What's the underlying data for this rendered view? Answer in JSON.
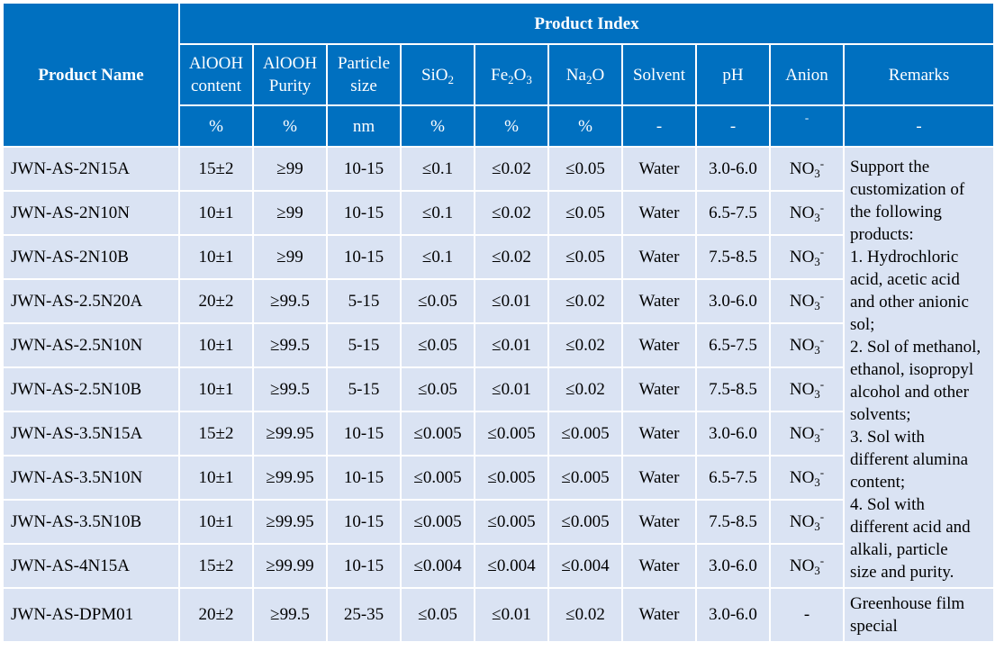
{
  "header": {
    "product_name": "Product Name",
    "product_index": "Product Index",
    "columns": [
      {
        "parts": [
          {
            "t": "AlOOH content"
          }
        ]
      },
      {
        "parts": [
          {
            "t": "AlOOH Purity"
          }
        ]
      },
      {
        "parts": [
          {
            "t": "Particle size"
          }
        ]
      },
      {
        "parts": [
          {
            "t": "SiO"
          },
          {
            "t": "2",
            "s": "sub"
          }
        ]
      },
      {
        "parts": [
          {
            "t": "Fe"
          },
          {
            "t": "2",
            "s": "sub"
          },
          {
            "t": "O"
          },
          {
            "t": "3",
            "s": "sub"
          }
        ]
      },
      {
        "parts": [
          {
            "t": "Na"
          },
          {
            "t": "2",
            "s": "sub"
          },
          {
            "t": "O"
          }
        ]
      },
      {
        "parts": [
          {
            "t": "Solvent"
          }
        ]
      },
      {
        "parts": [
          {
            "t": "pH"
          }
        ]
      },
      {
        "parts": [
          {
            "t": "Anion"
          }
        ]
      },
      {
        "parts": [
          {
            "t": "Remarks"
          }
        ]
      }
    ],
    "units": [
      "%",
      "%",
      "nm",
      "%",
      "%",
      "%",
      "-",
      "-",
      "-",
      "-"
    ]
  },
  "rows": [
    {
      "name": "JWN-AS-2N15A",
      "content": "15±2",
      "purity": "≥99",
      "size": "10-15",
      "sio2": "≤0.1",
      "fe2o3": "≤0.02",
      "na2o": "≤0.05",
      "solvent": "Water",
      "ph": "3.0-6.0",
      "anion": "NO3-"
    },
    {
      "name": "JWN-AS-2N10N",
      "content": "10±1",
      "purity": "≥99",
      "size": "10-15",
      "sio2": "≤0.1",
      "fe2o3": "≤0.02",
      "na2o": "≤0.05",
      "solvent": "Water",
      "ph": "6.5-7.5",
      "anion": "NO3-"
    },
    {
      "name": "JWN-AS-2N10B",
      "content": "10±1",
      "purity": "≥99",
      "size": "10-15",
      "sio2": "≤0.1",
      "fe2o3": "≤0.02",
      "na2o": "≤0.05",
      "solvent": "Water",
      "ph": "7.5-8.5",
      "anion": "NO3-"
    },
    {
      "name": "JWN-AS-2.5N20A",
      "content": "20±2",
      "purity": "≥99.5",
      "size": "5-15",
      "sio2": "≤0.05",
      "fe2o3": "≤0.01",
      "na2o": "≤0.02",
      "solvent": "Water",
      "ph": "3.0-6.0",
      "anion": "NO3-"
    },
    {
      "name": "JWN-AS-2.5N10N",
      "content": "10±1",
      "purity": "≥99.5",
      "size": "5-15",
      "sio2": "≤0.05",
      "fe2o3": "≤0.01",
      "na2o": "≤0.02",
      "solvent": "Water",
      "ph": "6.5-7.5",
      "anion": "NO3-"
    },
    {
      "name": "JWN-AS-2.5N10B",
      "content": "10±1",
      "purity": "≥99.5",
      "size": "5-15",
      "sio2": "≤0.05",
      "fe2o3": "≤0.01",
      "na2o": "≤0.02",
      "solvent": "Water",
      "ph": "7.5-8.5",
      "anion": "NO3-"
    },
    {
      "name": "JWN-AS-3.5N15A",
      "content": "15±2",
      "purity": "≥99.95",
      "size": "10-15",
      "sio2": "≤0.005",
      "fe2o3": "≤0.005",
      "na2o": "≤0.005",
      "solvent": "Water",
      "ph": "3.0-6.0",
      "anion": "NO3-"
    },
    {
      "name": "JWN-AS-3.5N10N",
      "content": "10±1",
      "purity": "≥99.95",
      "size": "10-15",
      "sio2": "≤0.005",
      "fe2o3": "≤0.005",
      "na2o": "≤0.005",
      "solvent": "Water",
      "ph": "6.5-7.5",
      "anion": "NO3-"
    },
    {
      "name": "JWN-AS-3.5N10B",
      "content": "10±1",
      "purity": "≥99.95",
      "size": "10-15",
      "sio2": "≤0.005",
      "fe2o3": "≤0.005",
      "na2o": "≤0.005",
      "solvent": "Water",
      "ph": "7.5-8.5",
      "anion": "NO3-"
    },
    {
      "name": "JWN-AS-4N15A",
      "content": "15±2",
      "purity": "≥99.99",
      "size": "10-15",
      "sio2": "≤0.004",
      "fe2o3": "≤0.004",
      "na2o": "≤0.004",
      "solvent": "Water",
      "ph": "3.0-6.0",
      "anion": "NO3-"
    },
    {
      "name": "JWN-AS-DPM01",
      "content": "20±2",
      "purity": "≥99.5",
      "size": "25-35",
      "sio2": "≤0.05",
      "fe2o3": "≤0.01",
      "na2o": "≤0.02",
      "solvent": "Water",
      "ph": "3.0-6.0",
      "anion": "-"
    }
  ],
  "remarks": {
    "customization": "Support the customization of the following products: 1. Hydrochloric acid, acetic acid and other anionic sol; 2. Sol of methanol, ethanol, isopropyl alcohol and other solvents; 3. Sol with different alumina content; 4. Sol with different acid and alkali, particle size and purity.",
    "customization_lines": [
      "Support the",
      "customization of",
      "the following",
      "products:",
      "1. Hydrochloric",
      "acid, acetic acid",
      "and other anionic",
      "sol;",
      "2. Sol of methanol,",
      "ethanol, isopropyl",
      "alcohol and other",
      "solvents;",
      "3. Sol with",
      "different alumina",
      "content;",
      "4. Sol with",
      "different acid and",
      "alkali, particle",
      "size and purity."
    ],
    "special_lines": [
      "Greenhouse film",
      "special"
    ]
  },
  "colors": {
    "header_bg": "#0070c0",
    "header_text": "#ffffff",
    "body_bg": "#dae3f3",
    "grid": "#ffffff"
  }
}
